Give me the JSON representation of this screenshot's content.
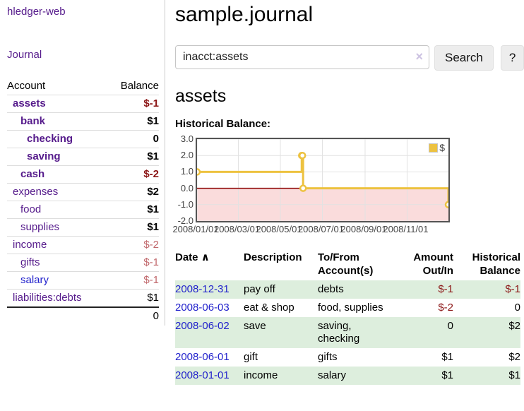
{
  "app": {
    "title": "hledger-web"
  },
  "sidebar": {
    "journal_link": "Journal",
    "headers": {
      "account": "Account",
      "balance": "Balance"
    },
    "accounts": [
      {
        "name": "assets",
        "balance": "$-1"
      },
      {
        "name": "bank",
        "balance": "$1"
      },
      {
        "name": "checking",
        "balance": "0"
      },
      {
        "name": "saving",
        "balance": "$1"
      },
      {
        "name": "cash",
        "balance": "$-2"
      },
      {
        "name": "expenses",
        "balance": "$2"
      },
      {
        "name": "food",
        "balance": "$1"
      },
      {
        "name": "supplies",
        "balance": "$1"
      },
      {
        "name": "income",
        "balance": "$-2"
      },
      {
        "name": "gifts",
        "balance": "$-1"
      },
      {
        "name": "salary",
        "balance": "$-1"
      },
      {
        "name": "liabilities:debts",
        "balance": "$1"
      }
    ],
    "total": "0"
  },
  "main": {
    "title": "sample.journal",
    "search": {
      "value": "inacct:assets",
      "clear_icon": "×",
      "button_label": "Search",
      "help_label": "?"
    },
    "account_heading": "assets",
    "chart_label": "Historical Balance:"
  },
  "chart_data": {
    "type": "line",
    "title": "Historical Balance:",
    "series": [
      {
        "name": "$",
        "color": "#edc240",
        "steps": true,
        "points": [
          [
            "2008-01-01",
            1
          ],
          [
            "2008-06-01",
            2
          ],
          [
            "2008-06-02",
            2
          ],
          [
            "2008-06-03",
            0
          ],
          [
            "2008-12-31",
            -1
          ]
        ]
      }
    ],
    "x_ticks": [
      "2008/01/01",
      "2008/03/01",
      "2008/05/01",
      "2008/07/01",
      "2008/09/01",
      "2008/11/01"
    ],
    "y_ticks": [
      "3.0",
      "2.0",
      "1.0",
      "0.0",
      "-1.0",
      "-2.0"
    ],
    "xlim": [
      "2008-01-01",
      "2008-12-31"
    ],
    "ylim": [
      -2,
      3
    ],
    "grid": true,
    "grid_color": "#e2e2e2",
    "zero_line_color": "#8b0000",
    "negative_region_color": "#fadcdc",
    "legend": {
      "position": "top-right",
      "label": "$"
    }
  },
  "register": {
    "sort_indicator": "∧",
    "headers": {
      "date": "Date",
      "description": "Description",
      "accounts": "To/From Account(s)",
      "amount": "Amount Out/In",
      "balance": "Historical Balance"
    },
    "rows": [
      {
        "date": "2008-12-31",
        "description": "pay off",
        "accounts": "debts",
        "amount": "$-1",
        "balance": "$-1"
      },
      {
        "date": "2008-06-03",
        "description": "eat & shop",
        "accounts": "food, supplies",
        "amount": "$-2",
        "balance": "0"
      },
      {
        "date": "2008-06-02",
        "description": "save",
        "accounts": "saving,\nchecking",
        "amount": "0",
        "balance": "$2"
      },
      {
        "date": "2008-06-01",
        "description": "gift",
        "accounts": "gifts",
        "amount": "$1",
        "balance": "$2"
      },
      {
        "date": "2008-01-01",
        "description": "income",
        "accounts": "salary",
        "amount": "$1",
        "balance": "$1"
      }
    ]
  }
}
